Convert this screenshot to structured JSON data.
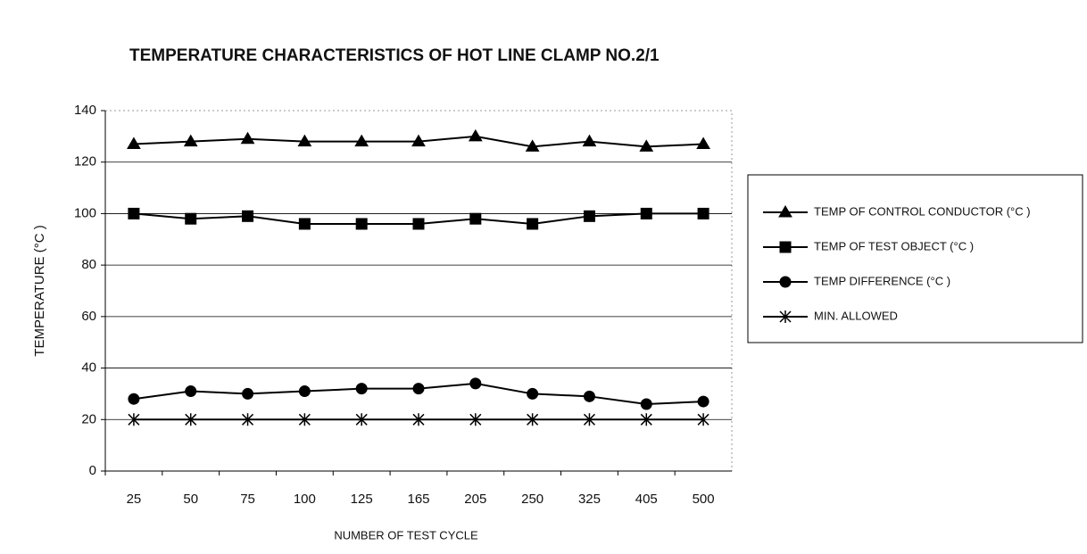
{
  "chart_data": {
    "type": "line",
    "title": "TEMPERATURE CHARACTERISTICS OF HOT LINE CLAMP NO.2/1",
    "x_label": "NUMBER OF TEST CYCLE",
    "y_label": "TEMPERATURE (°C )",
    "categories": [
      "25",
      "50",
      "75",
      "100",
      "125",
      "165",
      "205",
      "250",
      "325",
      "405",
      "500"
    ],
    "series": [
      {
        "name": "TEMP OF CONTROL CONDUCTOR (°C )",
        "color": "#000000",
        "marker": "triangle",
        "values": [
          127,
          128,
          129,
          128,
          128,
          128,
          130,
          126,
          128,
          126,
          127
        ]
      },
      {
        "name": "TEMP OF TEST OBJECT (°C )",
        "color": "#000000",
        "marker": "square",
        "values": [
          100,
          98,
          99,
          96,
          96,
          96,
          98,
          96,
          99,
          100,
          100
        ]
      },
      {
        "name": "TEMP DIFFERENCE (°C )",
        "color": "#000000",
        "marker": "circle",
        "values": [
          28,
          31,
          30,
          31,
          32,
          32,
          34,
          30,
          29,
          26,
          27
        ]
      },
      {
        "name": "MIN. ALLOWED",
        "color": "#000000",
        "marker": "x",
        "values": [
          20,
          20,
          20,
          20,
          20,
          20,
          20,
          20,
          20,
          20,
          20
        ]
      }
    ],
    "ylim": [
      0,
      140
    ],
    "yticks": [
      0,
      20,
      40,
      60,
      80,
      100,
      120,
      140
    ],
    "grid": true,
    "legend": "right"
  }
}
